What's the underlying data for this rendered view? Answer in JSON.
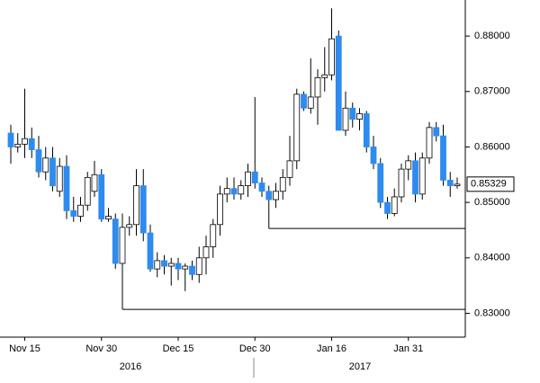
{
  "chart_data": {
    "type": "candlestick",
    "x": [
      null,
      null,
      "Nov 15",
      null,
      null,
      null,
      null,
      null,
      null,
      null,
      null,
      null,
      null,
      "Nov 30",
      null,
      null,
      null,
      null,
      null,
      null,
      null,
      null,
      null,
      null,
      "Dec 15",
      null,
      null,
      null,
      null,
      null,
      null,
      null,
      null,
      null,
      null,
      "Dec 30",
      null,
      null,
      null,
      null,
      null,
      null,
      null,
      null,
      null,
      null,
      "Jan 16",
      null,
      null,
      null,
      null,
      null,
      null,
      null,
      null,
      null,
      null,
      "Jan 31",
      null,
      null,
      null,
      null,
      null,
      null,
      null
    ],
    "open": [
      0.8625,
      0.86,
      0.8605,
      0.8615,
      0.8595,
      0.8555,
      0.858,
      0.852,
      0.8565,
      0.8485,
      0.8475,
      0.8495,
      0.852,
      0.855,
      0.847,
      0.847,
      0.839,
      0.8455,
      0.846,
      0.853,
      0.8445,
      0.838,
      0.8395,
      0.8385,
      0.839,
      0.838,
      0.8385,
      0.837,
      0.84,
      0.842,
      0.846,
      0.8515,
      0.8525,
      0.8515,
      0.853,
      0.8555,
      0.8535,
      0.852,
      0.8505,
      0.852,
      0.8545,
      0.8575,
      0.8695,
      0.867,
      0.869,
      0.8725,
      0.873,
      0.88,
      0.863,
      0.867,
      0.865,
      0.866,
      0.86,
      0.857,
      0.85,
      0.848,
      0.851,
      0.856,
      0.8575,
      0.8515,
      0.858,
      0.8635,
      0.862,
      0.854,
      0.853
    ],
    "high": [
      0.864,
      0.8625,
      0.8705,
      0.8635,
      0.862,
      0.86,
      0.86,
      0.858,
      0.8585,
      0.851,
      0.851,
      0.8555,
      0.8575,
      0.856,
      0.849,
      0.848,
      0.848,
      0.8475,
      0.856,
      0.856,
      0.846,
      0.841,
      0.8405,
      0.84,
      0.84,
      0.839,
      0.8395,
      0.842,
      0.844,
      0.847,
      0.853,
      0.8545,
      0.8545,
      0.854,
      0.857,
      0.869,
      0.8545,
      0.853,
      0.8535,
      0.856,
      0.862,
      0.8705,
      0.87,
      0.876,
      0.874,
      0.878,
      0.885,
      0.881,
      0.87,
      0.868,
      0.867,
      0.8665,
      0.862,
      0.858,
      0.851,
      0.8525,
      0.857,
      0.8585,
      0.859,
      0.859,
      0.8645,
      0.8645,
      0.864,
      0.8555,
      0.8545
    ],
    "low": [
      0.857,
      0.859,
      0.858,
      0.858,
      0.8545,
      0.854,
      0.852,
      0.851,
      0.847,
      0.8465,
      0.8465,
      0.8485,
      0.851,
      0.8465,
      0.8465,
      0.838,
      0.8307,
      0.844,
      0.844,
      0.843,
      0.8375,
      0.8365,
      0.837,
      0.835,
      0.836,
      0.834,
      0.836,
      0.8355,
      0.837,
      0.84,
      0.844,
      0.85,
      0.8505,
      0.8505,
      0.851,
      0.8525,
      0.851,
      0.8453,
      0.849,
      0.8505,
      0.853,
      0.856,
      0.8665,
      0.866,
      0.864,
      0.87,
      0.872,
      0.863,
      0.862,
      0.8635,
      0.863,
      0.859,
      0.856,
      0.849,
      0.847,
      0.8475,
      0.85,
      0.854,
      0.85,
      0.8505,
      0.857,
      0.861,
      0.853,
      0.851,
      0.8525
    ],
    "close": [
      0.86,
      0.8605,
      0.8615,
      0.8595,
      0.8555,
      0.858,
      0.853,
      0.8565,
      0.8485,
      0.8475,
      0.8495,
      0.8545,
      0.855,
      0.847,
      0.8475,
      0.839,
      0.8455,
      0.846,
      0.853,
      0.8445,
      0.838,
      0.8395,
      0.8385,
      0.839,
      0.838,
      0.8385,
      0.837,
      0.84,
      0.842,
      0.846,
      0.8515,
      0.8525,
      0.8515,
      0.853,
      0.8555,
      0.8535,
      0.852,
      0.8505,
      0.852,
      0.8545,
      0.8575,
      0.8695,
      0.867,
      0.869,
      0.8725,
      0.873,
      0.8795,
      0.863,
      0.867,
      0.865,
      0.866,
      0.86,
      0.857,
      0.85,
      0.848,
      0.851,
      0.856,
      0.8575,
      0.8515,
      0.858,
      0.8635,
      0.862,
      0.854,
      0.853,
      0.85329
    ],
    "up_color": "#ffffff",
    "down_color": "#2e8bef",
    "ylim": [
      0.8257,
      0.8865
    ],
    "yticks": [
      {
        "value": 0.83,
        "label": "0.83000"
      },
      {
        "value": 0.84,
        "label": "0.84000"
      },
      {
        "value": 0.85,
        "label": "0.85000"
      },
      {
        "value": 0.86,
        "label": "0.86000"
      },
      {
        "value": 0.87,
        "label": "0.87000"
      },
      {
        "value": 0.88,
        "label": "0.88000"
      }
    ],
    "levels": [
      0.8307,
      0.8453
    ],
    "year_labels": [
      "2016",
      "2017"
    ]
  }
}
